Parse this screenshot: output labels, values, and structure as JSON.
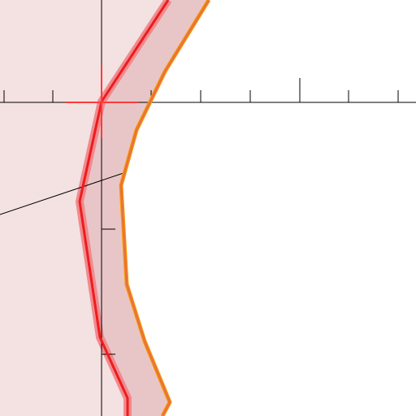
{
  "colors": {
    "background": "#ffffff",
    "region_fill": "#f4e1e1",
    "band_fill": "#e8c6c8",
    "band_stroke": "#f08a8f",
    "inner_edge": "#ee1c1c",
    "outer_edge_dark": "#e8743a",
    "outer_edge_light": "#ff9d00",
    "axis": "#000000",
    "crosshair": "#ff3b3b"
  }
}
